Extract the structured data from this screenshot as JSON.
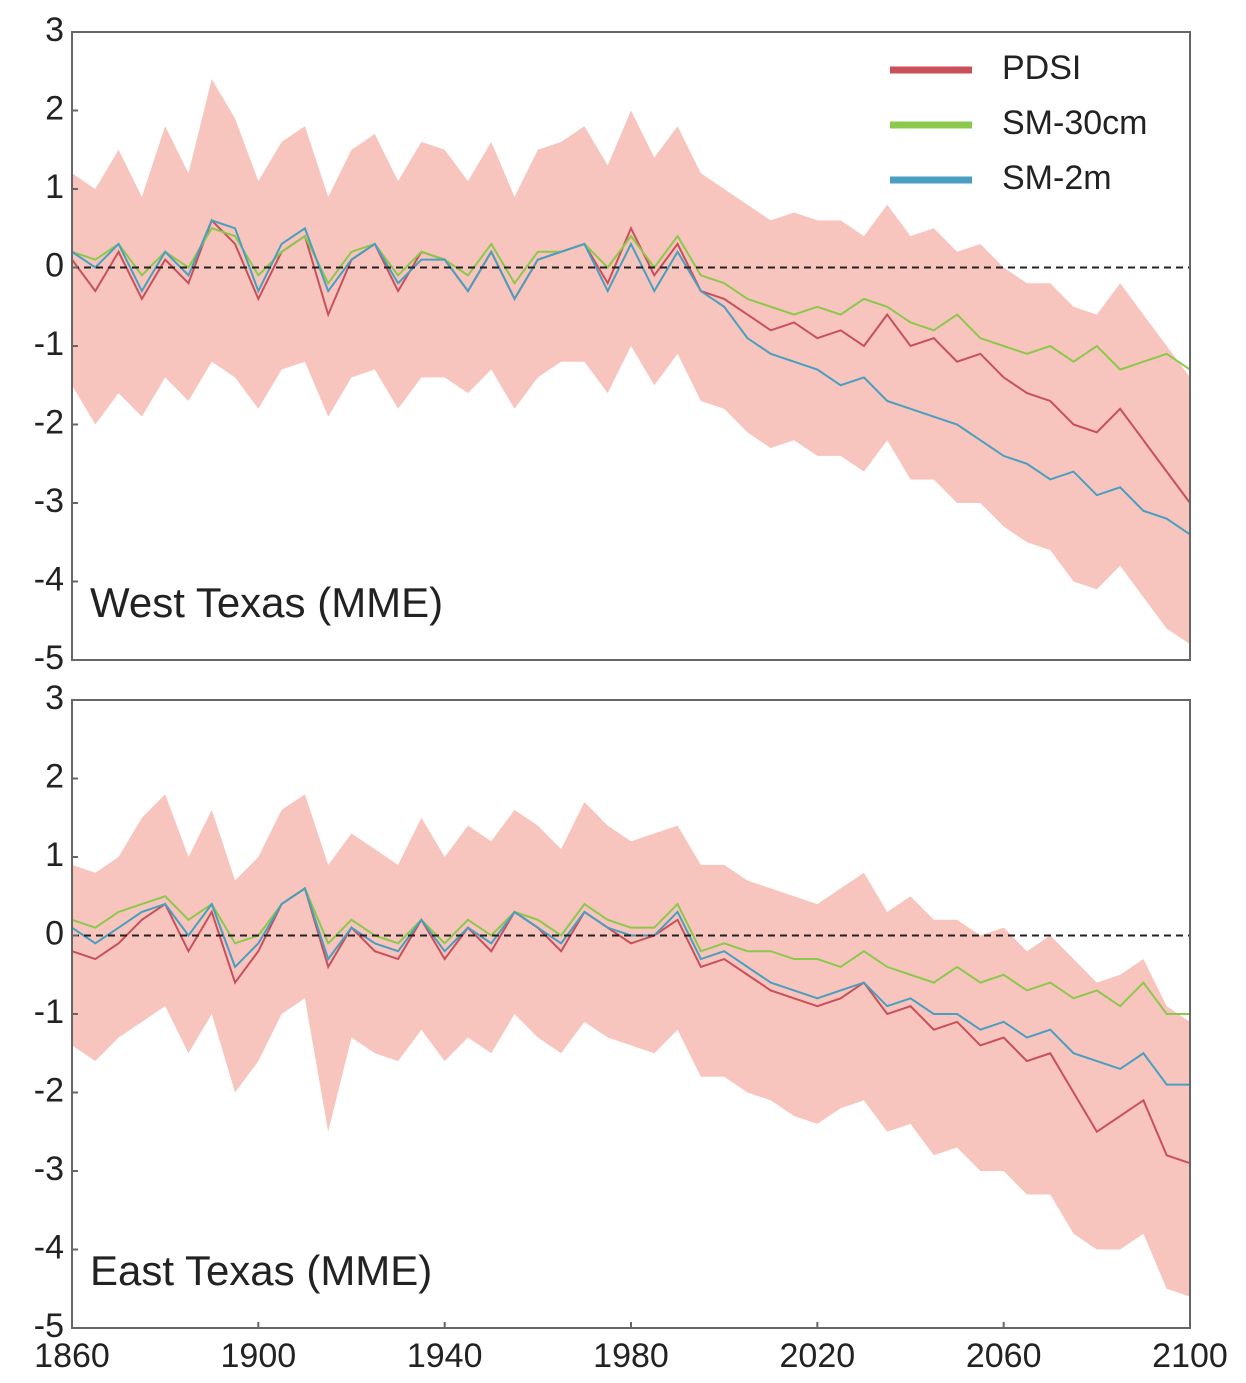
{
  "chart_data": [
    {
      "type": "line",
      "label": "West Texas (MME)",
      "legend": "upper right",
      "x": [
        1860,
        1865,
        1870,
        1875,
        1880,
        1885,
        1890,
        1895,
        1900,
        1905,
        1910,
        1915,
        1920,
        1925,
        1930,
        1935,
        1940,
        1945,
        1950,
        1955,
        1960,
        1965,
        1970,
        1975,
        1980,
        1985,
        1990,
        1995,
        2000,
        2005,
        2010,
        2015,
        2020,
        2025,
        2030,
        2035,
        2040,
        2045,
        2050,
        2055,
        2060,
        2065,
        2070,
        2075,
        2080,
        2085,
        2090,
        2095,
        2100
      ],
      "xlim": [
        1860,
        2100
      ],
      "ylim": [
        -5,
        3
      ],
      "yticks": [
        -5,
        -4,
        -3,
        -2,
        -1,
        0,
        1,
        2,
        3
      ],
      "hline": 0,
      "band": {
        "color": "#f7c5be",
        "lower": [
          -1.5,
          -2.0,
          -1.6,
          -1.9,
          -1.4,
          -1.7,
          -1.2,
          -1.4,
          -1.8,
          -1.3,
          -1.2,
          -1.9,
          -1.4,
          -1.3,
          -1.8,
          -1.4,
          -1.4,
          -1.6,
          -1.3,
          -1.8,
          -1.4,
          -1.2,
          -1.2,
          -1.6,
          -1.0,
          -1.5,
          -1.1,
          -1.7,
          -1.8,
          -2.1,
          -2.3,
          -2.2,
          -2.4,
          -2.4,
          -2.6,
          -2.2,
          -2.7,
          -2.7,
          -3.0,
          -3.0,
          -3.3,
          -3.5,
          -3.6,
          -4.0,
          -4.1,
          -3.8,
          -4.2,
          -4.6,
          -4.8
        ],
        "upper": [
          1.2,
          1.0,
          1.5,
          0.9,
          1.8,
          1.2,
          2.4,
          1.9,
          1.1,
          1.6,
          1.8,
          0.9,
          1.5,
          1.7,
          1.1,
          1.6,
          1.5,
          1.1,
          1.6,
          0.9,
          1.5,
          1.6,
          1.8,
          1.3,
          2.0,
          1.4,
          1.8,
          1.2,
          1.0,
          0.8,
          0.6,
          0.7,
          0.6,
          0.6,
          0.4,
          0.8,
          0.4,
          0.5,
          0.2,
          0.3,
          0,
          -0.2,
          -0.2,
          -0.5,
          -0.6,
          -0.2,
          -0.6,
          -1.0,
          -1.4
        ]
      },
      "series": [
        {
          "name": "PDSI",
          "color": "#c8505a",
          "values": [
            0.1,
            -0.3,
            0.2,
            -0.4,
            0.1,
            -0.2,
            0.6,
            0.3,
            -0.4,
            0.2,
            0.4,
            -0.6,
            0.1,
            0.3,
            -0.3,
            0.2,
            0.1,
            -0.3,
            0.2,
            -0.4,
            0.1,
            0.2,
            0.3,
            -0.2,
            0.5,
            -0.1,
            0.3,
            -0.3,
            -0.4,
            -0.6,
            -0.8,
            -0.7,
            -0.9,
            -0.8,
            -1.0,
            -0.6,
            -1.0,
            -0.9,
            -1.2,
            -1.1,
            -1.4,
            -1.6,
            -1.7,
            -2.0,
            -2.1,
            -1.8,
            -2.2,
            -2.6,
            -3.0
          ]
        },
        {
          "name": "SM-30cm",
          "color": "#8cc84b",
          "values": [
            0.2,
            0.1,
            0.3,
            -0.1,
            0.2,
            0,
            0.5,
            0.4,
            -0.1,
            0.2,
            0.4,
            -0.2,
            0.2,
            0.3,
            -0.1,
            0.2,
            0.1,
            -0.1,
            0.3,
            -0.2,
            0.2,
            0.2,
            0.3,
            0,
            0.4,
            0,
            0.4,
            -0.1,
            -0.2,
            -0.4,
            -0.5,
            -0.6,
            -0.5,
            -0.6,
            -0.4,
            -0.5,
            -0.7,
            -0.8,
            -0.6,
            -0.9,
            -1.0,
            -1.1,
            -1.0,
            -1.2,
            -1.0,
            -1.3,
            -1.2,
            -1.1,
            -1.3
          ]
        },
        {
          "name": "SM-2m",
          "color": "#4a9ec0",
          "values": [
            0.2,
            0,
            0.3,
            -0.3,
            0.2,
            -0.1,
            0.6,
            0.5,
            -0.3,
            0.3,
            0.5,
            -0.3,
            0.1,
            0.3,
            -0.2,
            0.1,
            0.1,
            -0.3,
            0.2,
            -0.4,
            0.1,
            0.2,
            0.3,
            -0.3,
            0.3,
            -0.3,
            0.2,
            -0.3,
            -0.5,
            -0.9,
            -1.1,
            -1.2,
            -1.3,
            -1.5,
            -1.4,
            -1.7,
            -1.8,
            -1.9,
            -2.0,
            -2.2,
            -2.4,
            -2.5,
            -2.7,
            -2.6,
            -2.9,
            -2.8,
            -3.1,
            -3.2,
            -3.4
          ]
        }
      ]
    },
    {
      "type": "line",
      "label": "East Texas (MME)",
      "x": [
        1860,
        1865,
        1870,
        1875,
        1880,
        1885,
        1890,
        1895,
        1900,
        1905,
        1910,
        1915,
        1920,
        1925,
        1930,
        1935,
        1940,
        1945,
        1950,
        1955,
        1960,
        1965,
        1970,
        1975,
        1980,
        1985,
        1990,
        1995,
        2000,
        2005,
        2010,
        2015,
        2020,
        2025,
        2030,
        2035,
        2040,
        2045,
        2050,
        2055,
        2060,
        2065,
        2070,
        2075,
        2080,
        2085,
        2090,
        2095,
        2100
      ],
      "xlim": [
        1860,
        2100
      ],
      "xticks": [
        1860,
        1900,
        1940,
        1980,
        2020,
        2060,
        2100
      ],
      "ylim": [
        -5,
        3
      ],
      "yticks": [
        -5,
        -4,
        -3,
        -2,
        -1,
        0,
        1,
        2,
        3
      ],
      "hline": 0,
      "band": {
        "color": "#f7c5be",
        "lower": [
          -1.4,
          -1.6,
          -1.3,
          -1.1,
          -0.9,
          -1.5,
          -1.0,
          -2.0,
          -1.6,
          -1.0,
          -0.8,
          -2.5,
          -1.3,
          -1.5,
          -1.6,
          -1.2,
          -1.6,
          -1.3,
          -1.5,
          -1.0,
          -1.3,
          -1.5,
          -1.1,
          -1.3,
          -1.4,
          -1.5,
          -1.2,
          -1.8,
          -1.8,
          -2.0,
          -2.1,
          -2.3,
          -2.4,
          -2.2,
          -2.1,
          -2.5,
          -2.4,
          -2.8,
          -2.7,
          -3.0,
          -3.0,
          -3.3,
          -3.3,
          -3.8,
          -4.0,
          -4.0,
          -3.8,
          -4.5,
          -4.6
        ],
        "upper": [
          0.9,
          0.8,
          1.0,
          1.5,
          1.8,
          1.0,
          1.6,
          0.7,
          1.0,
          1.6,
          1.8,
          0.9,
          1.3,
          1.1,
          0.9,
          1.5,
          1.0,
          1.4,
          1.2,
          1.6,
          1.4,
          1.1,
          1.7,
          1.4,
          1.2,
          1.3,
          1.4,
          0.9,
          0.9,
          0.7,
          0.6,
          0.5,
          0.4,
          0.6,
          0.8,
          0.3,
          0.5,
          0.2,
          0.2,
          0,
          0.1,
          -0.2,
          0,
          -0.3,
          -0.6,
          -0.5,
          -0.3,
          -0.9,
          -1.1
        ]
      },
      "series": [
        {
          "name": "PDSI",
          "color": "#c8505a",
          "values": [
            -0.2,
            -0.3,
            -0.1,
            0.2,
            0.4,
            -0.2,
            0.3,
            -0.6,
            -0.2,
            0.4,
            0.6,
            -0.4,
            0.1,
            -0.2,
            -0.3,
            0.2,
            -0.3,
            0.1,
            -0.2,
            0.3,
            0.1,
            -0.2,
            0.3,
            0.1,
            -0.1,
            0,
            0.2,
            -0.4,
            -0.3,
            -0.5,
            -0.7,
            -0.8,
            -0.9,
            -0.8,
            -0.6,
            -1.0,
            -0.9,
            -1.2,
            -1.1,
            -1.4,
            -1.3,
            -1.6,
            -1.5,
            -2.0,
            -2.5,
            -2.3,
            -2.1,
            -2.8,
            -2.9
          ]
        },
        {
          "name": "SM-30cm",
          "color": "#8cc84b",
          "values": [
            0.2,
            0.1,
            0.3,
            0.4,
            0.5,
            0.2,
            0.4,
            -0.1,
            0,
            0.4,
            0.6,
            -0.1,
            0.2,
            0,
            -0.1,
            0.2,
            -0.1,
            0.2,
            0,
            0.3,
            0.2,
            0,
            0.4,
            0.2,
            0.1,
            0.1,
            0.4,
            -0.2,
            -0.1,
            -0.2,
            -0.2,
            -0.3,
            -0.3,
            -0.4,
            -0.2,
            -0.4,
            -0.5,
            -0.6,
            -0.4,
            -0.6,
            -0.5,
            -0.7,
            -0.6,
            -0.8,
            -0.7,
            -0.9,
            -0.6,
            -1.0,
            -1.0
          ]
        },
        {
          "name": "SM-2m",
          "color": "#4a9ec0",
          "values": [
            0.1,
            -0.1,
            0.1,
            0.3,
            0.4,
            0,
            0.4,
            -0.4,
            -0.1,
            0.4,
            0.6,
            -0.3,
            0.1,
            -0.1,
            -0.2,
            0.2,
            -0.2,
            0.1,
            -0.1,
            0.3,
            0.1,
            -0.1,
            0.3,
            0.1,
            0,
            0,
            0.3,
            -0.3,
            -0.2,
            -0.4,
            -0.6,
            -0.7,
            -0.8,
            -0.7,
            -0.6,
            -0.9,
            -0.8,
            -1.0,
            -1.0,
            -1.2,
            -1.1,
            -1.3,
            -1.2,
            -1.5,
            -1.6,
            -1.7,
            -1.5,
            -1.9,
            -1.9
          ]
        }
      ]
    }
  ]
}
